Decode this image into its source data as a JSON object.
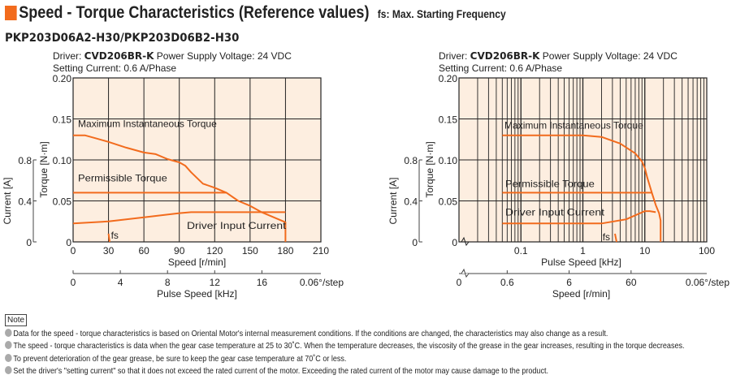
{
  "header": {
    "title": "Speed - Torque Characteristics (Reference values)",
    "subtitle": "fs: Max. Starting Frequency",
    "model": "PKP203D06A2-H30/PKP203D06B2-H30",
    "accent": "#f26b1d"
  },
  "chart_data": [
    {
      "type": "line",
      "xscale": "linear",
      "cond_prefix": "Driver: ",
      "driver": "CVD206BR-K",
      "cond_voltage": "Power Supply Voltage: 24 VDC",
      "cond_current": "Setting Current: 0.6 A/Phase",
      "xlabel": "Speed [r/min]",
      "xlim": [
        0,
        210
      ],
      "xticks": [
        "0",
        "30",
        "60",
        "90",
        "120",
        "150",
        "180",
        "210"
      ],
      "ylabel": "Torque [N·m]",
      "ylim": [
        0,
        0.2
      ],
      "yticks": [
        "0",
        "0.05",
        "0.10",
        "0.15",
        "0.20"
      ],
      "y2label": "Current [A]",
      "y2lim": [
        0,
        1.6
      ],
      "y2ticks": [
        "0",
        "0.4",
        "0.8"
      ],
      "x2label": "Pulse Speed [kHz]",
      "x2ticks": [
        "0",
        "4",
        "8",
        "12",
        "16"
      ],
      "x2note": "0.06°/step",
      "grid": true,
      "background": "#fdeee0",
      "line_color": "#f26b1d",
      "series": [
        {
          "name": "Maximum Instantaneous Torque",
          "axis": "torque",
          "x": [
            0,
            10,
            20,
            30,
            45,
            60,
            70,
            80,
            90,
            95,
            100,
            110,
            120,
            130,
            140,
            150,
            160,
            170,
            180,
            180
          ],
          "y": [
            0.13,
            0.13,
            0.126,
            0.122,
            0.115,
            0.109,
            0.107,
            0.101,
            0.097,
            0.093,
            0.085,
            0.071,
            0.066,
            0.06,
            0.05,
            0.044,
            0.036,
            0.03,
            0.024,
            0
          ]
        },
        {
          "name": "Permissible Torque",
          "axis": "torque",
          "x": [
            0,
            130
          ],
          "y": [
            0.06,
            0.06
          ]
        },
        {
          "name": "Driver Input Current",
          "axis": "current",
          "x": [
            0,
            30,
            60,
            90,
            100,
            180
          ],
          "y": [
            0.18,
            0.2,
            0.24,
            0.28,
            0.29,
            0.29
          ]
        },
        {
          "name": "fs",
          "axis": "torque",
          "x": [
            30,
            31
          ],
          "y": [
            0.01,
            0
          ]
        }
      ]
    },
    {
      "type": "line",
      "xscale": "log",
      "cond_prefix": "Driver: ",
      "driver": "CVD206BR-K",
      "cond_voltage": "Power Supply Voltage: 24 VDC",
      "cond_current": "Setting Current: 0.6 A/Phase",
      "xlabel": "Pulse Speed [kHz]",
      "xlim": [
        0.01,
        100
      ],
      "xticks": [
        "0.1",
        "1",
        "10",
        "100"
      ],
      "xbreak_label": "0",
      "ylabel": "Torque [N·m]",
      "ylim": [
        0,
        0.2
      ],
      "yticks": [
        "0",
        "0.05",
        "0.10",
        "0.15",
        "0.20"
      ],
      "y2label": "Current [A]",
      "y2lim": [
        0,
        1.6
      ],
      "y2ticks": [
        "0",
        "0.4",
        "0.8"
      ],
      "x2label": "Speed [r/min]",
      "x2ticks": [
        "0",
        "0.6",
        "6",
        "60"
      ],
      "x2note": "0.06°/step",
      "grid": true,
      "background": "#fdeee0",
      "line_color": "#f26b1d",
      "series": [
        {
          "name": "Maximum Instantaneous Torque",
          "axis": "torque",
          "x": [
            0.05,
            1,
            2,
            4,
            7,
            9,
            10,
            11,
            13,
            15,
            17,
            18,
            18
          ],
          "y": [
            0.13,
            0.13,
            0.128,
            0.12,
            0.108,
            0.098,
            0.09,
            0.078,
            0.06,
            0.045,
            0.035,
            0.026,
            0
          ]
        },
        {
          "name": "Permissible Torque",
          "axis": "torque",
          "x": [
            0.05,
            13
          ],
          "y": [
            0.06,
            0.06
          ]
        },
        {
          "name": "Driver Input Current",
          "axis": "current",
          "x": [
            0.05,
            1,
            2,
            5,
            10,
            12,
            15
          ],
          "y": [
            0.18,
            0.18,
            0.18,
            0.22,
            0.3,
            0.3,
            0.29
          ]
        },
        {
          "name": "fs",
          "axis": "torque",
          "x": [
            3.3,
            3.5
          ],
          "y": [
            0.01,
            0
          ]
        }
      ]
    }
  ],
  "notes": {
    "label": "Note",
    "items": [
      "Data for the speed - torque characteristics is based on Oriental Motor's internal measurement conditions. If the conditions are changed, the characteristics may also change as a result.",
      "The speed - torque characteristics is data when the gear case temperature at 25 to 30˚C. When the temperature decreases, the viscosity of the grease in the gear increases, resulting in the torque decreases.",
      "To prevent deterioration of the gear grease, be sure to keep the gear case temperature at 70˚C or less.",
      "Set the driver's \"setting current\" so that it does not exceed the rated current of the motor. Exceeding the rated current of the motor may cause damage to the product."
    ]
  }
}
